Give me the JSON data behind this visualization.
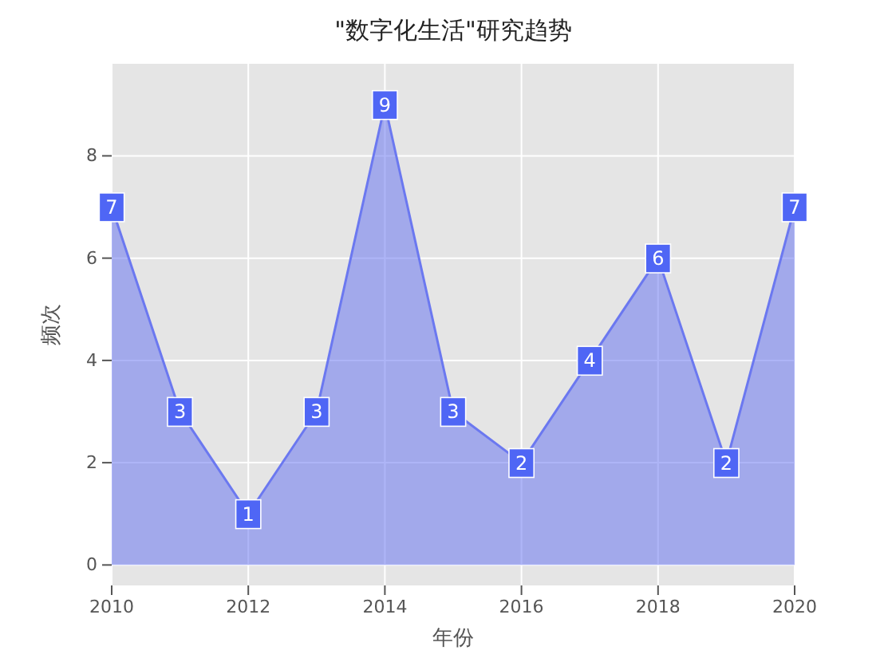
{
  "chart_data": {
    "type": "area",
    "title": "\"数字化生活\"研究趋势",
    "xlabel": "年份",
    "ylabel": "频次",
    "x": [
      2010,
      2011,
      2012,
      2013,
      2014,
      2015,
      2016,
      2017,
      2018,
      2019,
      2020
    ],
    "series": [
      {
        "color": "#6b78f0",
        "values": [
          7,
          3,
          1,
          3,
          9,
          3,
          2,
          4,
          6,
          2,
          7
        ]
      }
    ],
    "xlim": [
      2010,
      2020
    ],
    "xticks": [
      2010,
      2012,
      2014,
      2016,
      2018,
      2020
    ],
    "ylim": [
      -0.4,
      9.8
    ],
    "yticks": [
      0,
      2,
      4,
      6,
      8
    ],
    "grid": true,
    "data_labels": true
  }
}
